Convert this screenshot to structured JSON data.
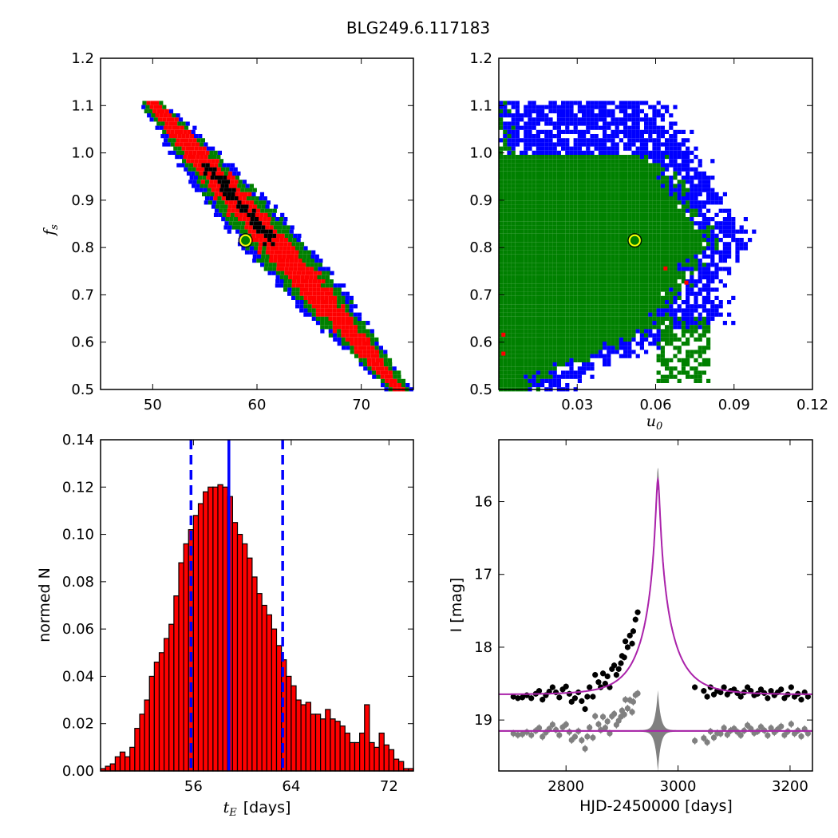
{
  "figure_title": "BLG249.6.117183",
  "colors": {
    "sigma1": "#000000",
    "sigma2": "#ff0000",
    "sigma3": "#008000",
    "sigma4": "#0000ff",
    "marker": "#ffff00",
    "model": "#aa22aa",
    "band": "#808080",
    "hist": "#ff0000"
  },
  "chart_data": [
    {
      "type": "heatmap",
      "xlabel": "",
      "ylabel_main": "f",
      "ylabel_sub": "s",
      "xlim": [
        45,
        75
      ],
      "ylim": [
        0.5,
        1.2
      ],
      "xticks": [
        "50",
        "60",
        "70"
      ],
      "yticks": [
        "0.5",
        "0.6",
        "0.7",
        "0.8",
        "0.9",
        "1.0",
        "1.1",
        "1.2"
      ],
      "best_fit": {
        "x": 58.9,
        "y": 0.815
      },
      "band": {
        "x_start": 50,
        "x_end": 73,
        "y_start": 1.105,
        "y_end": 0.515
      },
      "levels": [
        "sigma4",
        "sigma3",
        "sigma2",
        "sigma1"
      ]
    },
    {
      "type": "heatmap",
      "xlabel_main": "u",
      "xlabel_sub": "0",
      "ylabel": "",
      "xlim": [
        0,
        0.12
      ],
      "ylim": [
        0.5,
        1.2
      ],
      "xticks": [
        "0.03",
        "0.06",
        "0.09",
        "0.12"
      ],
      "yticks": [
        "0.5",
        "0.6",
        "0.7",
        "0.8",
        "0.9",
        "1.0",
        "1.1",
        "1.2"
      ],
      "best_fit": {
        "x": 0.052,
        "y": 0.815
      },
      "levels": [
        "sigma4",
        "sigma3",
        "sigma2"
      ]
    },
    {
      "type": "bar",
      "xlabel_main": "t",
      "xlabel_sub": "E",
      "xlabel_unit": "[days]",
      "ylabel": "normed N",
      "xlim": [
        48.4,
        74.0
      ],
      "ylim": [
        0,
        0.14
      ],
      "xticks": [
        "56",
        "64",
        "72"
      ],
      "yticks": [
        "0.00",
        "0.02",
        "0.04",
        "0.06",
        "0.08",
        "0.10",
        "0.12",
        "0.14"
      ],
      "bin_start": 48.4,
      "bin_width": 0.4,
      "values": [
        0.001,
        0.002,
        0.003,
        0.006,
        0.008,
        0.006,
        0.01,
        0.018,
        0.024,
        0.03,
        0.04,
        0.046,
        0.05,
        0.056,
        0.062,
        0.074,
        0.088,
        0.096,
        0.102,
        0.108,
        0.113,
        0.118,
        0.12,
        0.12,
        0.121,
        0.12,
        0.116,
        0.105,
        0.1,
        0.096,
        0.09,
        0.082,
        0.075,
        0.07,
        0.066,
        0.06,
        0.053,
        0.047,
        0.04,
        0.036,
        0.03,
        0.028,
        0.029,
        0.024,
        0.024,
        0.022,
        0.026,
        0.022,
        0.021,
        0.019,
        0.016,
        0.012,
        0.012,
        0.016,
        0.028,
        0.012,
        0.01,
        0.016,
        0.011,
        0.009,
        0.005,
        0.004,
        0.001,
        0.001
      ],
      "median": 58.9,
      "lower_bound": 55.8,
      "upper_bound": 63.3
    },
    {
      "type": "scatter",
      "xlabel": "HJD-2450000 [days]",
      "ylabel": "I [mag]",
      "xlim": [
        2680,
        3240
      ],
      "ylim": [
        19.7,
        15.15
      ],
      "xticks": [
        "2800",
        "3000",
        "3200"
      ],
      "yticks": [
        "16",
        "17",
        "18",
        "19"
      ],
      "model": {
        "t0": 2964,
        "u0": 0.052,
        "tE": 58.9,
        "baseline": 18.65,
        "residual_offset": 19.15
      },
      "observations": [
        [
          2706,
          18.68
        ],
        [
          2714,
          18.7
        ],
        [
          2722,
          18.69
        ],
        [
          2730,
          18.66
        ],
        [
          2738,
          18.7
        ],
        [
          2746,
          18.64
        ],
        [
          2752,
          18.6
        ],
        [
          2758,
          18.72
        ],
        [
          2764,
          18.66
        ],
        [
          2770,
          18.61
        ],
        [
          2776,
          18.55
        ],
        [
          2782,
          18.62
        ],
        [
          2788,
          18.69
        ],
        [
          2794,
          18.58
        ],
        [
          2800,
          18.54
        ],
        [
          2806,
          18.64
        ],
        [
          2810,
          18.75
        ],
        [
          2816,
          18.7
        ],
        [
          2822,
          18.62
        ],
        [
          2828,
          18.74
        ],
        [
          2834,
          18.85
        ],
        [
          2838,
          18.68
        ],
        [
          2842,
          18.55
        ],
        [
          2848,
          18.68
        ],
        [
          2852,
          18.38
        ],
        [
          2858,
          18.48
        ],
        [
          2862,
          18.55
        ],
        [
          2866,
          18.36
        ],
        [
          2870,
          18.5
        ],
        [
          2874,
          18.4
        ],
        [
          2878,
          18.55
        ],
        [
          2882,
          18.3
        ],
        [
          2886,
          18.25
        ],
        [
          2890,
          18.38
        ],
        [
          2894,
          18.3
        ],
        [
          2898,
          18.22
        ],
        [
          2900,
          18.12
        ],
        [
          2904,
          18.14
        ],
        [
          2906,
          17.92
        ],
        [
          2910,
          18.0
        ],
        [
          2914,
          17.84
        ],
        [
          2918,
          17.95
        ],
        [
          2920,
          17.78
        ],
        [
          2924,
          17.62
        ],
        [
          2928,
          17.52
        ],
        [
          3030,
          18.55
        ],
        [
          3046,
          18.6
        ],
        [
          3052,
          18.68
        ],
        [
          3058,
          18.55
        ],
        [
          3064,
          18.65
        ],
        [
          3070,
          18.6
        ],
        [
          3076,
          18.62
        ],
        [
          3082,
          18.55
        ],
        [
          3088,
          18.65
        ],
        [
          3094,
          18.6
        ],
        [
          3100,
          18.58
        ],
        [
          3106,
          18.63
        ],
        [
          3112,
          18.68
        ],
        [
          3118,
          18.62
        ],
        [
          3124,
          18.55
        ],
        [
          3130,
          18.6
        ],
        [
          3136,
          18.66
        ],
        [
          3142,
          18.64
        ],
        [
          3148,
          18.58
        ],
        [
          3154,
          18.63
        ],
        [
          3160,
          18.7
        ],
        [
          3166,
          18.6
        ],
        [
          3172,
          18.66
        ],
        [
          3178,
          18.62
        ],
        [
          3184,
          18.58
        ],
        [
          3190,
          18.7
        ],
        [
          3196,
          18.65
        ],
        [
          3202,
          18.55
        ],
        [
          3208,
          18.68
        ],
        [
          3214,
          18.64
        ],
        [
          3220,
          18.72
        ],
        [
          3226,
          18.62
        ],
        [
          3232,
          18.68
        ]
      ]
    }
  ]
}
